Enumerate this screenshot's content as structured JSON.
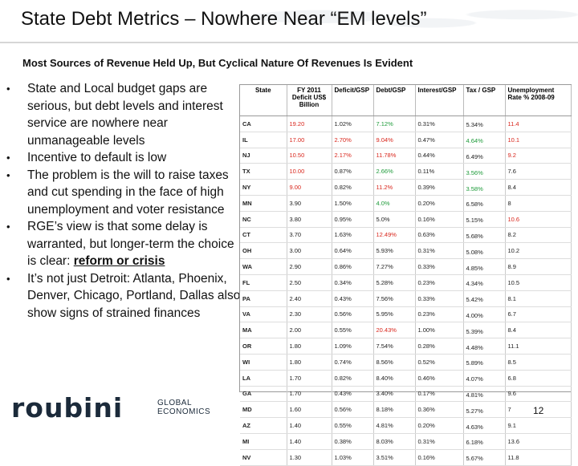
{
  "title": "State Debt Metrics – Nowhere Near “EM levels”",
  "subtitle": "Most Sources of Revenue Held Up, But Cyclical Nature Of Revenues Is Evident",
  "bullets": [
    {
      "text": "State and Local budget gaps are serious, but debt levels and interest service are nowhere near unmanageable levels"
    },
    {
      "text": "Incentive to default is low"
    },
    {
      "text": "The problem is the will to raise taxes and cut spending in the face of high unemployment and voter resistance"
    },
    {
      "text_before": "RGE’s view is that some delay is warranted, but longer-term the choice is clear: ",
      "emphasis": "reform or crisis"
    },
    {
      "text": "It’s not just Detroit: Atlanta, Phoenix, Denver, Chicago, Portland, Dallas also show signs of strained finances"
    }
  ],
  "bullet_marker": "•",
  "table": {
    "headers": [
      "State",
      "FY 2011 Deficit US$ Billion",
      "Deficit/GSP",
      "Debt/GSP",
      "Interest/GSP",
      "Tax / GSP",
      "Unemployment Rate % 2008-09"
    ],
    "rows": [
      {
        "cells": [
          "CA",
          "19.20",
          "1.02%",
          "7.12%",
          "0.31%",
          "5.34%",
          "11.4"
        ],
        "colors": [
          "",
          "red",
          "",
          "green",
          "",
          "",
          "red"
        ]
      },
      {
        "cells": [
          "IL",
          "17.00",
          "2.70%",
          "9.04%",
          "0.47%",
          "4.64%",
          "10.1"
        ],
        "colors": [
          "",
          "red",
          "red",
          "red",
          "",
          "green",
          "red"
        ]
      },
      {
        "cells": [
          "NJ",
          "10.50",
          "2.17%",
          "11.78%",
          "0.44%",
          "6.49%",
          "9.2"
        ],
        "colors": [
          "",
          "red",
          "red",
          "red",
          "",
          "",
          "red"
        ]
      },
      {
        "cells": [
          "TX",
          "10.00",
          "0.87%",
          "2.66%",
          "0.11%",
          "3.56%",
          "7.6"
        ],
        "colors": [
          "",
          "red",
          "",
          "green",
          "",
          "green",
          ""
        ]
      },
      {
        "cells": [
          "NY",
          "9.00",
          "0.82%",
          "11.2%",
          "0.39%",
          "3.58%",
          "8.4"
        ],
        "colors": [
          "",
          "red",
          "",
          "red",
          "",
          "green",
          ""
        ]
      },
      {
        "cells": [
          "MN",
          "3.90",
          "1.50%",
          "4.0%",
          "0.20%",
          "6.58%",
          "8"
        ],
        "colors": [
          "",
          "",
          "",
          "green",
          "",
          "",
          ""
        ]
      },
      {
        "cells": [
          "NC",
          "3.80",
          "0.95%",
          "5.0%",
          "0.16%",
          "5.15%",
          "10.6"
        ],
        "colors": [
          "",
          "",
          "",
          "",
          "",
          "",
          "red"
        ]
      },
      {
        "cells": [
          "CT",
          "3.70",
          "1.63%",
          "12.49%",
          "0.63%",
          "5.68%",
          "8.2"
        ],
        "colors": [
          "",
          "",
          "",
          "red",
          "",
          "",
          ""
        ]
      },
      {
        "cells": [
          "OH",
          "3.00",
          "0.64%",
          "5.93%",
          "0.31%",
          "5.08%",
          "10.2"
        ],
        "colors": [
          "",
          "",
          "",
          "",
          "",
          "",
          ""
        ]
      },
      {
        "cells": [
          "WA",
          "2.90",
          "0.86%",
          "7.27%",
          "0.33%",
          "4.85%",
          "8.9"
        ],
        "colors": [
          "",
          "",
          "",
          "",
          "",
          "",
          ""
        ]
      },
      {
        "cells": [
          "FL",
          "2.50",
          "0.34%",
          "5.28%",
          "0.23%",
          "4.34%",
          "10.5"
        ],
        "colors": [
          "",
          "",
          "",
          "",
          "",
          "",
          ""
        ]
      },
      {
        "cells": [
          "PA",
          "2.40",
          "0.43%",
          "7.56%",
          "0.33%",
          "5.42%",
          "8.1"
        ],
        "colors": [
          "",
          "",
          "",
          "",
          "",
          "",
          ""
        ]
      },
      {
        "cells": [
          "VA",
          "2.30",
          "0.56%",
          "5.95%",
          "0.23%",
          "4.00%",
          "6.7"
        ],
        "colors": [
          "",
          "",
          "",
          "",
          "",
          "",
          ""
        ]
      },
      {
        "cells": [
          "MA",
          "2.00",
          "0.55%",
          "20.43%",
          "1.00%",
          "5.39%",
          "8.4"
        ],
        "colors": [
          "",
          "",
          "",
          "red",
          "",
          "",
          ""
        ]
      },
      {
        "cells": [
          "OR",
          "1.80",
          "1.09%",
          "7.54%",
          "0.28%",
          "4.48%",
          "11.1"
        ],
        "colors": [
          "",
          "",
          "",
          "",
          "",
          "",
          ""
        ]
      },
      {
        "cells": [
          "WI",
          "1.80",
          "0.74%",
          "8.56%",
          "0.52%",
          "5.89%",
          "8.5"
        ],
        "colors": [
          "",
          "",
          "",
          "",
          "",
          "",
          ""
        ]
      },
      {
        "cells": [
          "LA",
          "1.70",
          "0.82%",
          "8.40%",
          "0.46%",
          "4.07%",
          "6.8"
        ],
        "colors": [
          "",
          "",
          "",
          "",
          "",
          "",
          ""
        ]
      },
      {
        "cells": [
          "GA",
          "1.70",
          "0.43%",
          "3.40%",
          "0.17%",
          "4.81%",
          "9.6"
        ],
        "colors": [
          "",
          "",
          "",
          "",
          "",
          "",
          ""
        ]
      },
      {
        "cells": [
          "MD",
          "1.60",
          "0.56%",
          "8.18%",
          "0.36%",
          "5.27%",
          "7"
        ],
        "colors": [
          "",
          "",
          "",
          "",
          "",
          "",
          ""
        ]
      },
      {
        "cells": [
          "AZ",
          "1.40",
          "0.55%",
          "4.81%",
          "0.20%",
          "4.63%",
          "9.1"
        ],
        "colors": [
          "",
          "",
          "",
          "",
          "",
          "",
          ""
        ]
      },
      {
        "cells": [
          "MI",
          "1.40",
          "0.38%",
          "8.03%",
          "0.31%",
          "6.18%",
          "13.6"
        ],
        "colors": [
          "",
          "",
          "",
          "",
          "",
          "",
          ""
        ]
      },
      {
        "cells": [
          "NV",
          "1.30",
          "1.03%",
          "3.51%",
          "0.16%",
          "5.67%",
          "11.8"
        ],
        "colors": [
          "",
          "",
          "",
          "",
          "",
          "",
          ""
        ]
      }
    ]
  },
  "logo": {
    "main": "roubini",
    "line1": "GLOBAL",
    "line2": "ECONOMICS"
  },
  "page_number": "12",
  "colors": {
    "red": "#d9261c",
    "green": "#1e9b3a"
  }
}
